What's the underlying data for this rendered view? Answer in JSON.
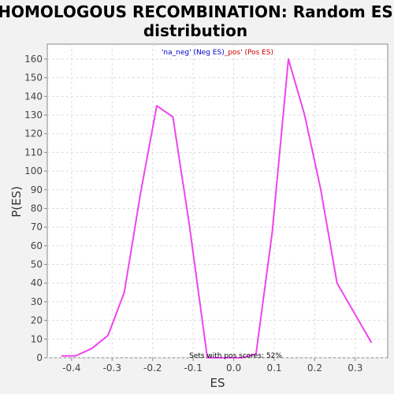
{
  "chart_data": {
    "type": "line",
    "title_line1": "HOMOLOGOUS RECOMBINATION: Random ES",
    "title_line2": "distribution",
    "xlabel": "ES",
    "ylabel": "P(ES)",
    "xlim": [
      -0.46,
      0.38
    ],
    "ylim": [
      0,
      168
    ],
    "xticks": [
      -0.4,
      -0.3,
      -0.2,
      -0.1,
      0.0,
      0.1,
      0.2,
      0.3
    ],
    "xtick_labels": [
      "-0.4",
      "-0.3",
      "-0.2",
      "-0.1",
      "0.0",
      "0.1",
      "0.2",
      "0.3"
    ],
    "yticks": [
      0,
      10,
      20,
      30,
      40,
      50,
      60,
      70,
      80,
      90,
      100,
      110,
      120,
      130,
      140,
      150,
      160
    ],
    "ytick_labels": [
      "0",
      "10",
      "20",
      "30",
      "40",
      "50",
      "60",
      "70",
      "80",
      "90",
      "100",
      "110",
      "120",
      "130",
      "140",
      "150",
      "160"
    ],
    "grid": true,
    "legend": {
      "placement": "top-center",
      "entries": [
        {
          "text": "'na_neg' (Neg ES)",
          "color": "#0000cc"
        },
        {
          "text": "_pos' (Pos ES)",
          "color": "#cc0000"
        }
      ]
    },
    "annotation": "Sets with pos scores: 52%",
    "line_color": "#ee44ee",
    "series": [
      {
        "x": [
          -0.425,
          -0.39,
          -0.35,
          -0.31,
          -0.27,
          -0.23,
          -0.19,
          -0.15,
          -0.11,
          -0.065,
          -0.02,
          0.02,
          0.055,
          0.095,
          0.135,
          0.175,
          0.215,
          0.255,
          0.295,
          0.34
        ],
        "values": [
          1,
          1,
          5,
          12,
          35,
          88,
          135,
          129,
          72,
          0,
          0,
          0,
          2,
          67,
          160,
          130,
          90,
          40,
          25,
          8
        ]
      }
    ]
  }
}
